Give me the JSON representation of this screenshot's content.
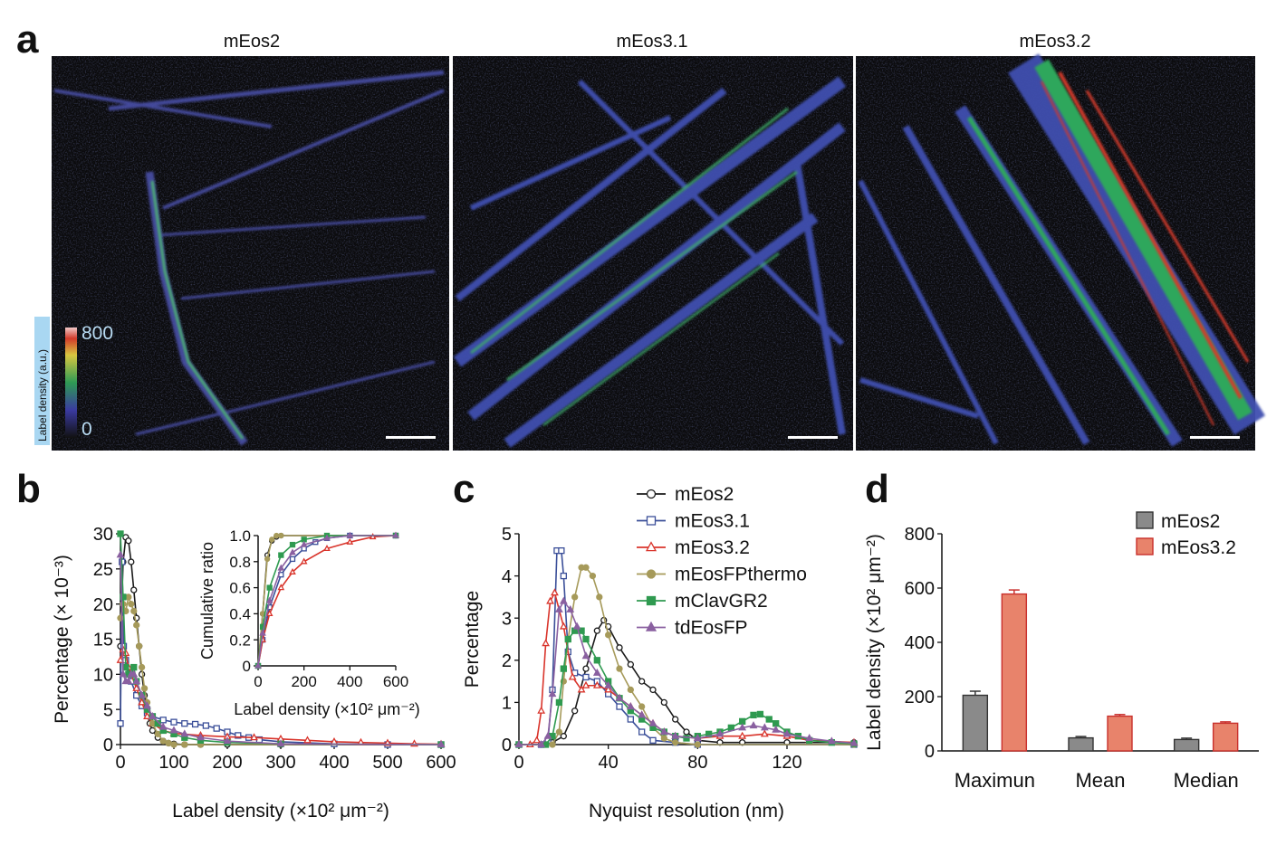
{
  "panels": {
    "a": "a",
    "b": "b",
    "c": "c",
    "d": "d"
  },
  "panel_a": {
    "titles": [
      "mEos2",
      "mEos3.1",
      "mEos3.2"
    ],
    "colorbar": {
      "label": "Label density (a.u.)",
      "max": "800",
      "min": "0"
    }
  },
  "colors": {
    "mEos2": "#1a1a1a",
    "mEos3.1": "#3b4f99",
    "mEos3.2": "#d9342b",
    "mEosFPthermo": "#a69a5a",
    "mClavGR2": "#2f9a50",
    "tdEosFP": "#8a60a0",
    "bar_gray": "#8a8a8a",
    "bar_salmon": "#e8836b"
  },
  "chart_data": [
    {
      "id": "b",
      "type": "line",
      "xlabel": "Label density (×10² μm⁻²)",
      "ylabel": "Percentage (× 10⁻³)",
      "xlim": [
        0,
        600
      ],
      "ylim": [
        0,
        30
      ],
      "xticks": [
        "0",
        "100",
        "200",
        "300",
        "400",
        "500",
        "600"
      ],
      "yticks": [
        "0",
        "5",
        "10",
        "15",
        "20",
        "25",
        "30"
      ],
      "series": [
        {
          "name": "mEos2",
          "x": [
            0,
            5,
            10,
            15,
            20,
            25,
            30,
            35,
            40,
            45,
            50,
            55,
            60,
            70,
            80,
            90,
            100,
            120,
            150,
            200,
            300,
            600
          ],
          "y": [
            14,
            26,
            29.5,
            29,
            26,
            22,
            18,
            14,
            10,
            7,
            4.5,
            3,
            2,
            1,
            0.5,
            0.2,
            0.1,
            0,
            0,
            0,
            0,
            0
          ]
        },
        {
          "name": "mEos3.1",
          "x": [
            0,
            3,
            6,
            10,
            20,
            30,
            40,
            50,
            60,
            80,
            100,
            120,
            140,
            160,
            180,
            200,
            220,
            240,
            260,
            300,
            400,
            500,
            600
          ],
          "y": [
            3,
            26,
            14,
            12,
            9,
            7,
            5.5,
            4.5,
            4,
            3.5,
            3.2,
            3,
            2.9,
            2.7,
            2.3,
            1.8,
            1.3,
            1,
            0.7,
            0.4,
            0.1,
            0,
            0
          ]
        },
        {
          "name": "mEos3.2",
          "x": [
            0,
            5,
            10,
            15,
            20,
            30,
            40,
            50,
            60,
            80,
            100,
            150,
            200,
            250,
            300,
            350,
            400,
            450,
            500,
            550,
            600
          ],
          "y": [
            12,
            13.5,
            13,
            11,
            10,
            8,
            6,
            4,
            3,
            2,
            1.6,
            1.3,
            1.1,
            1,
            0.8,
            0.6,
            0.4,
            0.3,
            0.2,
            0.1,
            0.05
          ]
        },
        {
          "name": "mEosFPthermo",
          "x": [
            0,
            5,
            10,
            15,
            20,
            25,
            30,
            35,
            40,
            45,
            50,
            60,
            70,
            80,
            90,
            100,
            120,
            150,
            600
          ],
          "y": [
            18,
            20,
            19,
            21,
            20,
            19,
            17,
            14,
            11,
            8,
            6,
            3,
            1.5,
            0.5,
            0.2,
            0,
            0,
            0,
            0
          ]
        },
        {
          "name": "mClavGR2",
          "x": [
            0,
            5,
            10,
            15,
            20,
            25,
            30,
            40,
            50,
            60,
            70,
            80,
            100,
            120,
            150,
            200,
            300,
            600
          ],
          "y": [
            30,
            21,
            11,
            10,
            10,
            11,
            9,
            7,
            5,
            4,
            3,
            2,
            1.5,
            1,
            0.6,
            0.3,
            0.1,
            0
          ]
        },
        {
          "name": "tdEosFP",
          "x": [
            0,
            5,
            10,
            15,
            20,
            25,
            30,
            40,
            50,
            60,
            80,
            100,
            120,
            150,
            200,
            300,
            600
          ],
          "y": [
            27,
            10,
            9,
            9,
            10,
            10,
            9,
            7,
            5.5,
            4,
            2.5,
            2,
            1.5,
            1,
            0.5,
            0.1,
            0
          ]
        }
      ],
      "inset": {
        "type": "line",
        "xlabel": "Label density (×10² μm⁻²)",
        "ylabel": "Cumulative ratio",
        "xlim": [
          0,
          600
        ],
        "ylim": [
          0,
          1
        ],
        "xticks": [
          "0",
          "200",
          "400",
          "600"
        ],
        "yticks": [
          "0",
          "0.2",
          "0.4",
          "0.6",
          "0.8",
          "1.0"
        ],
        "series": [
          {
            "name": "mEos2",
            "x": [
              0,
              20,
              40,
              60,
              80,
              100,
              600
            ],
            "y": [
              0,
              0.4,
              0.85,
              0.96,
              0.99,
              1,
              1
            ]
          },
          {
            "name": "mEos3.1",
            "x": [
              0,
              20,
              50,
              100,
              150,
              200,
              250,
              300,
              400,
              600
            ],
            "y": [
              0,
              0.2,
              0.45,
              0.7,
              0.82,
              0.9,
              0.95,
              0.98,
              1,
              1
            ]
          },
          {
            "name": "mEos3.2",
            "x": [
              0,
              20,
              50,
              100,
              150,
              200,
              300,
              400,
              500,
              600
            ],
            "y": [
              0,
              0.2,
              0.4,
              0.6,
              0.72,
              0.8,
              0.9,
              0.95,
              0.99,
              1
            ]
          },
          {
            "name": "mEosFPthermo",
            "x": [
              0,
              20,
              40,
              60,
              80,
              100,
              600
            ],
            "y": [
              0,
              0.4,
              0.82,
              0.97,
              1,
              1,
              1
            ]
          },
          {
            "name": "mClavGR2",
            "x": [
              0,
              20,
              50,
              100,
              150,
              200,
              300,
              600
            ],
            "y": [
              0,
              0.3,
              0.6,
              0.85,
              0.93,
              0.97,
              1,
              1
            ]
          },
          {
            "name": "tdEosFP",
            "x": [
              0,
              20,
              50,
              100,
              150,
              200,
              300,
              400,
              600
            ],
            "y": [
              0,
              0.25,
              0.5,
              0.75,
              0.87,
              0.93,
              0.98,
              1,
              1
            ]
          }
        ]
      }
    },
    {
      "id": "c",
      "type": "line",
      "xlabel": "Nyquist resolution (nm)",
      "ylabel": "Percentage",
      "xlim": [
        0,
        150
      ],
      "ylim": [
        0,
        5
      ],
      "xticks": [
        "0",
        "40",
        "80",
        "120"
      ],
      "yticks": [
        "0",
        "1",
        "2",
        "3",
        "4",
        "5"
      ],
      "legend_position": "top-center",
      "series": [
        {
          "name": "mEos2",
          "x": [
            0,
            10,
            15,
            20,
            25,
            30,
            35,
            38,
            40,
            45,
            50,
            55,
            60,
            65,
            70,
            75,
            80,
            90,
            100,
            120,
            150
          ],
          "y": [
            0,
            0,
            0.05,
            0.2,
            0.8,
            1.8,
            2.7,
            2.95,
            2.8,
            2.3,
            1.9,
            1.5,
            1.3,
            1.0,
            0.6,
            0.3,
            0.1,
            0.05,
            0.05,
            0.05,
            0.05
          ]
        },
        {
          "name": "mEos3.1",
          "x": [
            0,
            10,
            13,
            15,
            17,
            19,
            20,
            22,
            25,
            30,
            35,
            40,
            45,
            50,
            55,
            60,
            70,
            80,
            150
          ],
          "y": [
            0,
            0,
            0.1,
            1.3,
            4.6,
            4.6,
            4.0,
            2.2,
            1.7,
            1.6,
            1.5,
            1.2,
            0.9,
            0.6,
            0.3,
            0.1,
            0.05,
            0,
            0
          ]
        },
        {
          "name": "mEos3.2",
          "x": [
            0,
            5,
            8,
            10,
            12,
            14,
            16,
            20,
            24,
            28,
            30,
            35,
            40,
            45,
            50,
            55,
            60,
            65,
            70,
            80,
            90,
            100,
            110,
            120,
            130,
            150
          ],
          "y": [
            0,
            0,
            0.1,
            0.8,
            2.4,
            3.4,
            3.6,
            2.8,
            1.6,
            1.3,
            1.4,
            1.4,
            1.3,
            1.1,
            0.9,
            0.7,
            0.5,
            0.3,
            0.2,
            0.15,
            0.2,
            0.2,
            0.25,
            0.2,
            0.1,
            0.05
          ]
        },
        {
          "name": "mEosFPthermo",
          "x": [
            0,
            15,
            18,
            20,
            22,
            25,
            28,
            30,
            33,
            36,
            40,
            45,
            50,
            55,
            60,
            65,
            70,
            80,
            150
          ],
          "y": [
            0,
            0,
            0.3,
            1.5,
            2.5,
            3.5,
            4.2,
            4.2,
            4.0,
            3.5,
            2.6,
            1.8,
            1.3,
            0.9,
            0.4,
            0.15,
            0.05,
            0,
            0
          ]
        },
        {
          "name": "mClavGR2",
          "x": [
            0,
            12,
            15,
            18,
            20,
            22,
            25,
            28,
            30,
            35,
            40,
            45,
            50,
            55,
            60,
            65,
            70,
            75,
            80,
            85,
            90,
            95,
            100,
            105,
            108,
            112,
            115,
            120,
            125,
            130,
            140,
            150
          ],
          "y": [
            0,
            0,
            0.2,
            1.0,
            1.8,
            2.5,
            2.7,
            2.7,
            2.5,
            2.0,
            1.5,
            1.1,
            0.8,
            0.6,
            0.4,
            0.3,
            0.2,
            0.15,
            0.2,
            0.25,
            0.3,
            0.4,
            0.55,
            0.7,
            0.72,
            0.6,
            0.5,
            0.3,
            0.2,
            0.1,
            0.05,
            0.02
          ]
        },
        {
          "name": "tdEosFP",
          "x": [
            0,
            10,
            13,
            15,
            18,
            20,
            23,
            26,
            30,
            35,
            40,
            45,
            50,
            55,
            60,
            65,
            70,
            80,
            90,
            100,
            105,
            110,
            115,
            120,
            130,
            140,
            150
          ],
          "y": [
            0,
            0,
            0.2,
            1.2,
            3.2,
            3.4,
            3.2,
            2.8,
            2.1,
            1.7,
            1.4,
            1.1,
            0.9,
            0.7,
            0.5,
            0.3,
            0.2,
            0.15,
            0.25,
            0.4,
            0.45,
            0.4,
            0.35,
            0.25,
            0.15,
            0.08,
            0.03
          ]
        }
      ]
    },
    {
      "id": "d",
      "type": "bar",
      "ylabel": "Label density (×10² μm⁻²)",
      "ylim": [
        0,
        800
      ],
      "yticks": [
        "0",
        "200",
        "400",
        "600",
        "800"
      ],
      "categories": [
        "Maximun",
        "Mean",
        "Median"
      ],
      "legend_position": "top-right",
      "series": [
        {
          "name": "mEos2",
          "values": [
            205,
            48,
            42
          ],
          "errors": [
            15,
            5,
            5
          ]
        },
        {
          "name": "mEos3.2",
          "values": [
            578,
            128,
            102
          ],
          "errors": [
            15,
            6,
            5
          ]
        }
      ]
    }
  ]
}
